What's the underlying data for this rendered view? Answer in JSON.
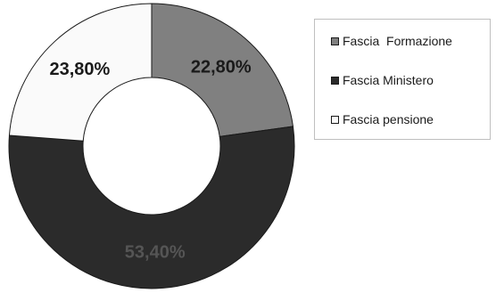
{
  "chart_data": {
    "type": "pie",
    "donut": true,
    "title": "",
    "categories": [
      "Fascia  Formazione",
      "Fascia Ministero",
      "Fascia pensione"
    ],
    "values": [
      22.8,
      53.4,
      23.8
    ],
    "value_labels": [
      "22,80%",
      "53,40%",
      "23,80%"
    ],
    "colors": [
      "#808080",
      "#2b2b2b",
      "#fafafa"
    ],
    "label_colors": [
      "#1a1a1a",
      "#555555",
      "#1a1a1a"
    ],
    "start": "12 o'clock, clockwise",
    "legend_position": "right"
  }
}
